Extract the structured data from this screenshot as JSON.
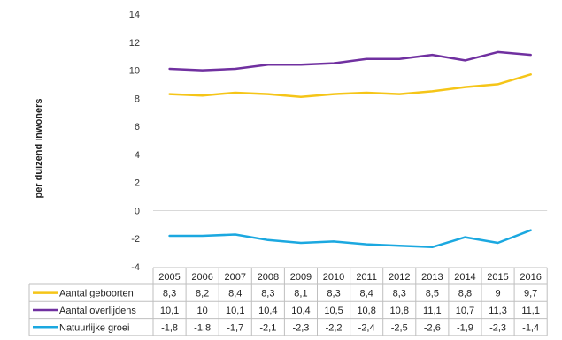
{
  "chart_data": {
    "type": "line",
    "ylabel": "per duizend inwoners",
    "ylim": [
      -4,
      14
    ],
    "yticks": [
      "14",
      "12",
      "10",
      "8",
      "6",
      "4",
      "2",
      "0",
      "-2",
      "-4"
    ],
    "categories": [
      "2005",
      "2006",
      "2007",
      "2008",
      "2009",
      "2010",
      "2011",
      "2012",
      "2013",
      "2014",
      "2015",
      "2016"
    ],
    "grid": false,
    "legend": "data table below chart",
    "series": [
      {
        "name": "Aantal geboorten",
        "color": "#F5C518",
        "values": [
          8.3,
          8.2,
          8.4,
          8.3,
          8.1,
          8.3,
          8.4,
          8.3,
          8.5,
          8.8,
          9,
          9.7
        ],
        "labels": [
          "8,3",
          "8,2",
          "8,4",
          "8,3",
          "8,1",
          "8,3",
          "8,4",
          "8,3",
          "8,5",
          "8,8",
          "9",
          "9,7"
        ]
      },
      {
        "name": "Aantal overlijdens",
        "color": "#7030A0",
        "values": [
          10.1,
          10,
          10.1,
          10.4,
          10.4,
          10.5,
          10.8,
          10.8,
          11.1,
          10.7,
          11.3,
          11.1
        ],
        "labels": [
          "10,1",
          "10",
          "10,1",
          "10,4",
          "10,4",
          "10,5",
          "10,8",
          "10,8",
          "11,1",
          "10,7",
          "11,3",
          "11,1"
        ]
      },
      {
        "name": "Natuurlijke groei",
        "color": "#1BA8E0",
        "values": [
          -1.8,
          -1.8,
          -1.7,
          -2.1,
          -2.3,
          -2.2,
          -2.4,
          -2.5,
          -2.6,
          -1.9,
          -2.3,
          -1.4
        ],
        "labels": [
          "-1,8",
          "-1,8",
          "-1,7",
          "-2,1",
          "-2,3",
          "-2,2",
          "-2,4",
          "-2,5",
          "-2,6",
          "-1,9",
          "-2,3",
          "-1,4"
        ]
      }
    ]
  }
}
